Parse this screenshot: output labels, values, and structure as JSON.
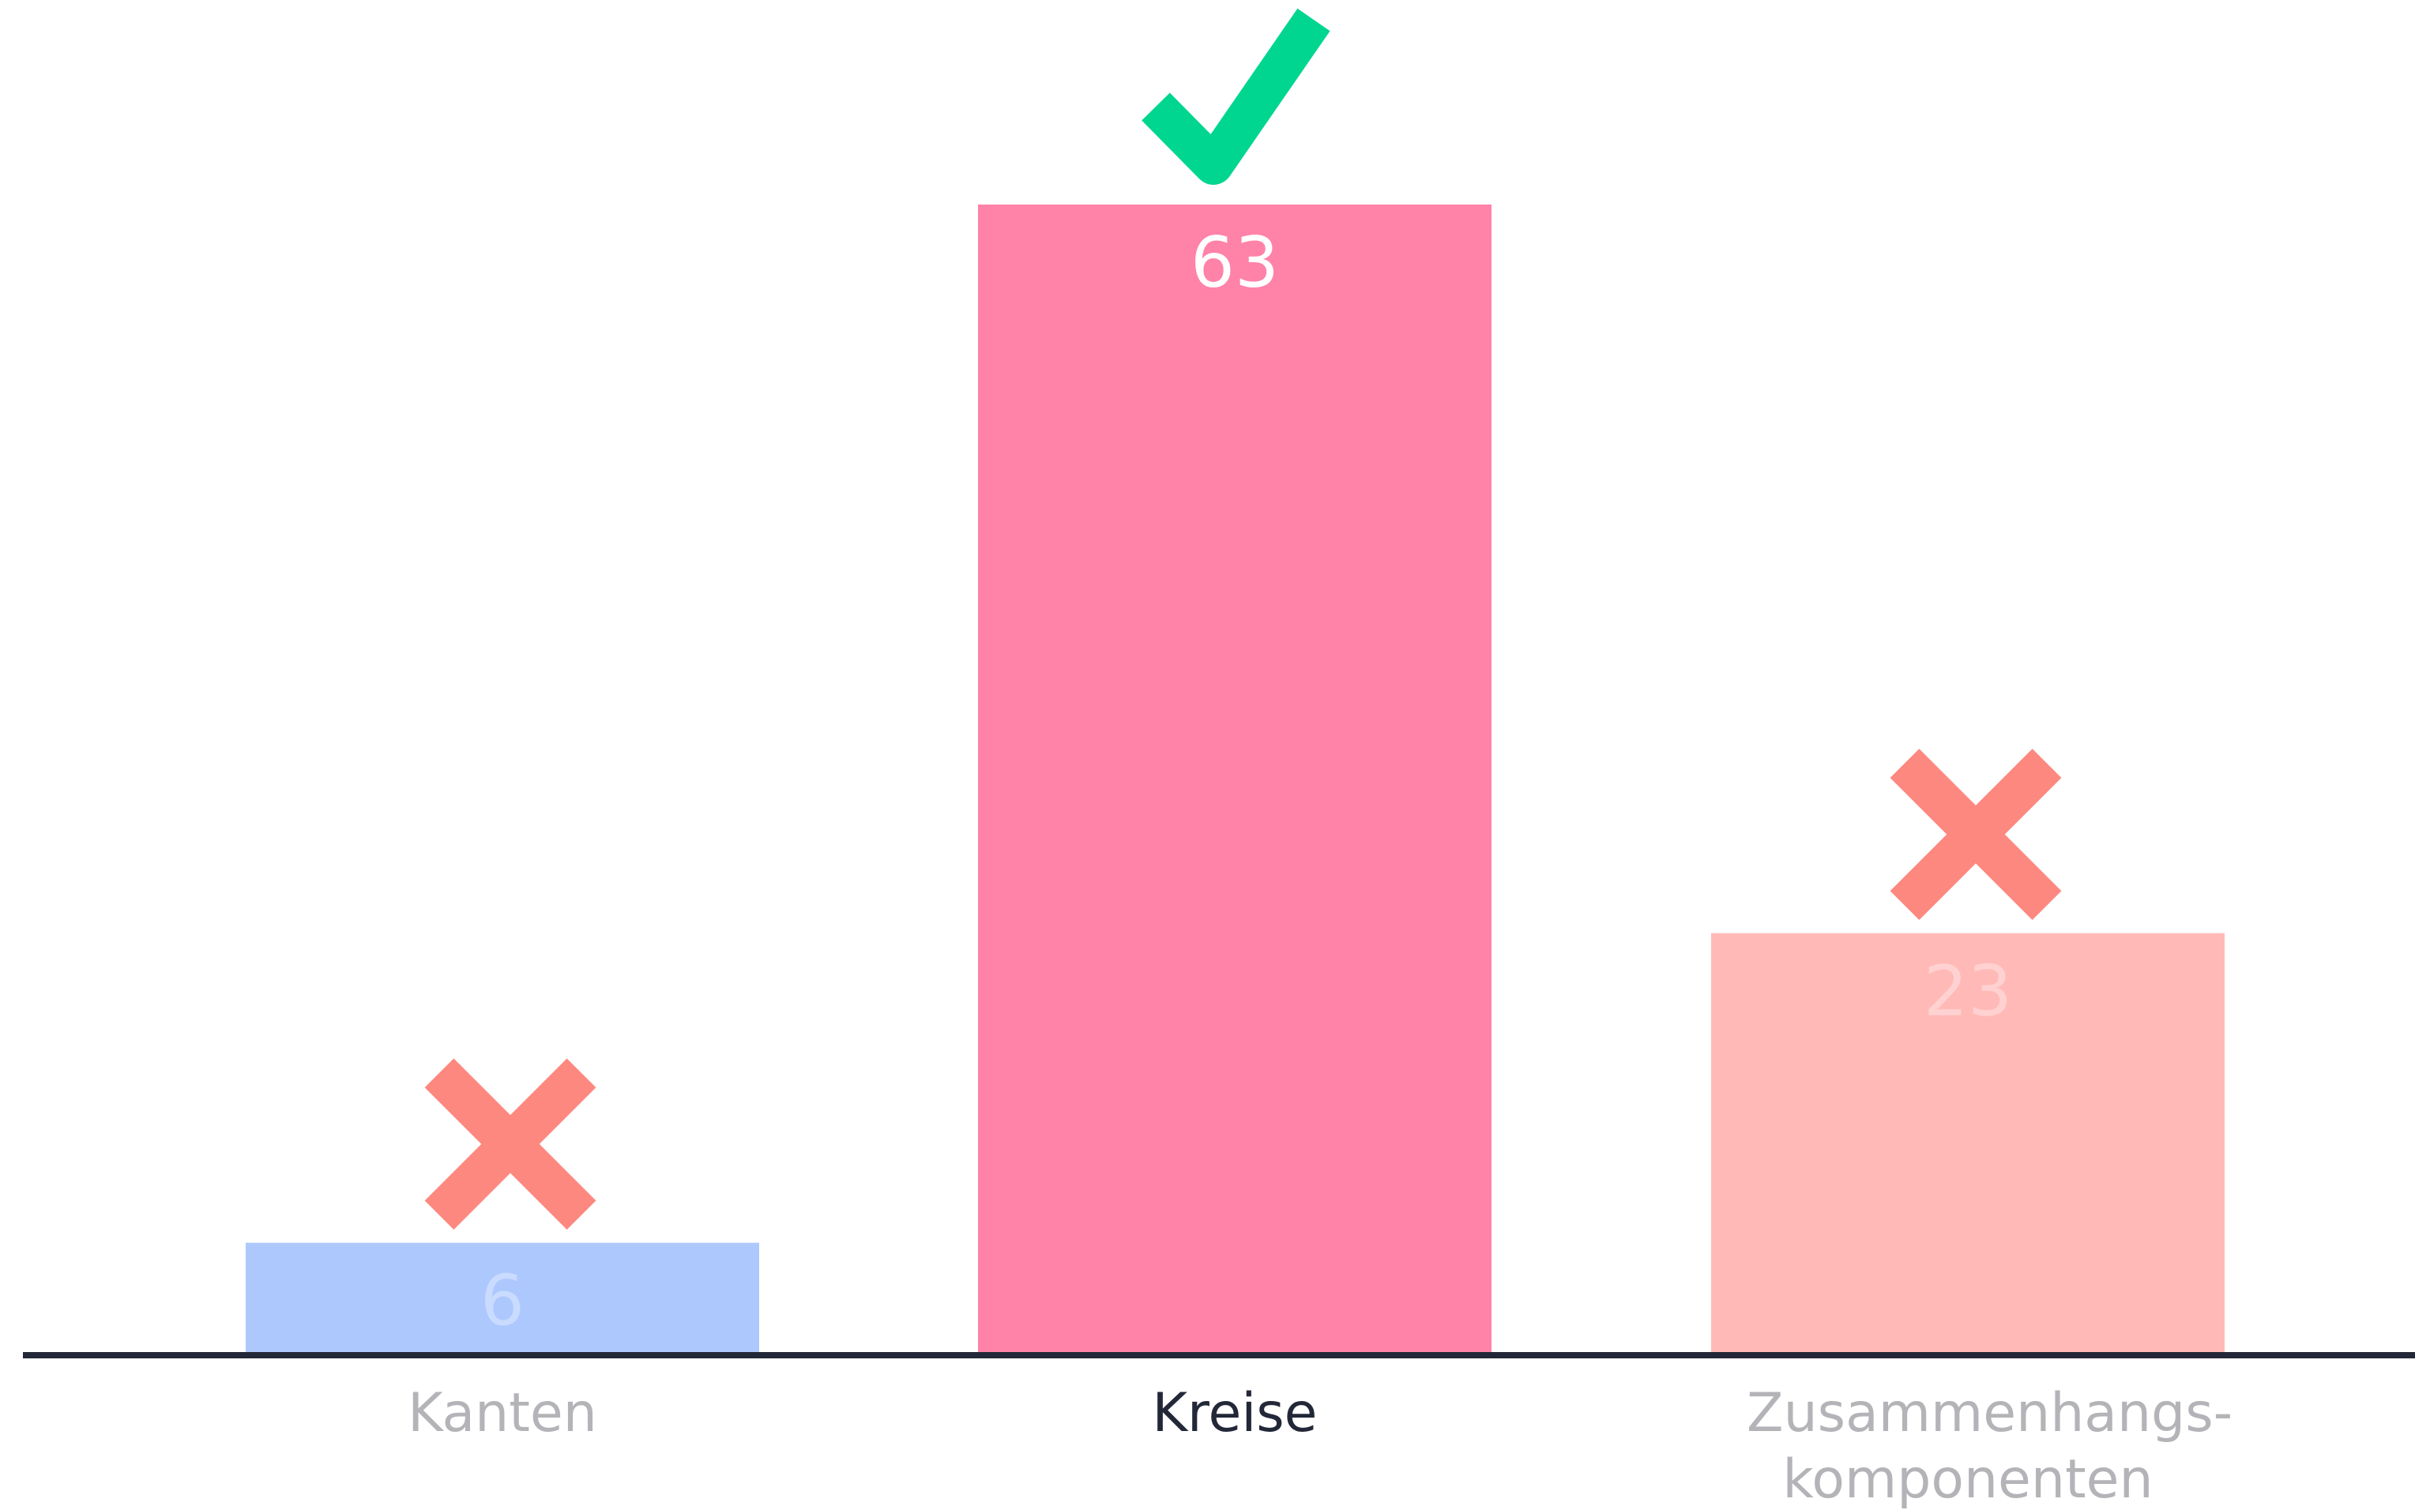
{
  "chart_data": {
    "type": "bar",
    "categories": [
      "Kanten",
      "Kreise",
      "Zusammenhangs-komponenten"
    ],
    "values": [
      6,
      63,
      23
    ],
    "colors": [
      "#adc8fd",
      "#ff82a9",
      "#ffbab8"
    ],
    "label_colors": [
      "#b4b4b8",
      "#232838",
      "#b4b4b8"
    ]
  }
}
